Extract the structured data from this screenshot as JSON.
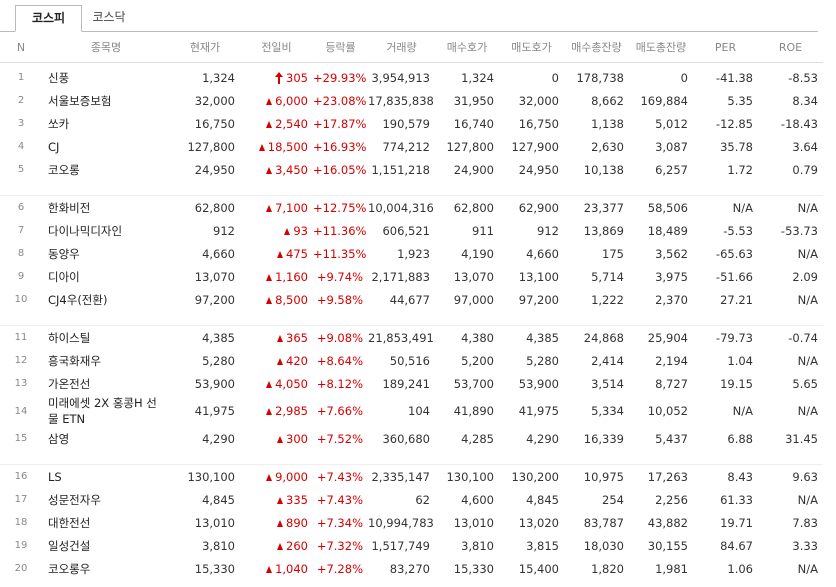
{
  "tabs": [
    "코스피",
    "코스닥"
  ],
  "headers": [
    "N",
    "종목명",
    "현재가",
    "전일비",
    "등락률",
    "거래량",
    "매수호가",
    "매도호가",
    "매수총잔량",
    "매도총잔량",
    "PER",
    "ROE"
  ],
  "rows": [
    [
      "1",
      "신풍",
      "1,324",
      "305",
      "+29.93%",
      "3,954,913",
      "1,324",
      "0",
      "178,738",
      "0",
      "-41.38",
      "-8.53"
    ],
    [
      "2",
      "서울보증보험",
      "32,000",
      "6,000",
      "+23.08%",
      "17,835,838",
      "31,950",
      "32,000",
      "8,662",
      "169,884",
      "5.35",
      "8.34"
    ],
    [
      "3",
      "쏘카",
      "16,750",
      "2,540",
      "+17.87%",
      "190,579",
      "16,740",
      "16,750",
      "1,138",
      "5,012",
      "-12.85",
      "-18.43"
    ],
    [
      "4",
      "CJ",
      "127,800",
      "18,500",
      "+16.93%",
      "774,212",
      "127,800",
      "127,900",
      "2,630",
      "3,087",
      "35.78",
      "3.64"
    ],
    [
      "5",
      "코오롱",
      "24,950",
      "3,450",
      "+16.05%",
      "1,151,218",
      "24,900",
      "24,950",
      "10,138",
      "6,257",
      "1.72",
      "0.79"
    ],
    [
      "6",
      "한화비전",
      "62,800",
      "7,100",
      "+12.75%",
      "10,004,316",
      "62,800",
      "62,900",
      "23,377",
      "58,506",
      "N/A",
      "N/A"
    ],
    [
      "7",
      "다이나믹디자인",
      "912",
      "93",
      "+11.36%",
      "606,521",
      "911",
      "912",
      "13,869",
      "18,489",
      "-5.53",
      "-53.73"
    ],
    [
      "8",
      "동양우",
      "4,660",
      "475",
      "+11.35%",
      "1,923",
      "4,190",
      "4,660",
      "175",
      "3,562",
      "-65.63",
      "N/A"
    ],
    [
      "9",
      "디아이",
      "13,070",
      "1,160",
      "+9.74%",
      "2,171,883",
      "13,070",
      "13,100",
      "5,714",
      "3,975",
      "-51.66",
      "2.09"
    ],
    [
      "10",
      "CJ4우(전환)",
      "97,200",
      "8,500",
      "+9.58%",
      "44,677",
      "97,000",
      "97,200",
      "1,222",
      "2,370",
      "27.21",
      "N/A"
    ],
    [
      "11",
      "하이스틸",
      "4,385",
      "365",
      "+9.08%",
      "21,853,491",
      "4,380",
      "4,385",
      "24,868",
      "25,904",
      "-79.73",
      "-0.74"
    ],
    [
      "12",
      "흥국화재우",
      "5,280",
      "420",
      "+8.64%",
      "50,516",
      "5,200",
      "5,280",
      "2,414",
      "2,194",
      "1.04",
      "N/A"
    ],
    [
      "13",
      "가온전선",
      "53,900",
      "4,050",
      "+8.12%",
      "189,241",
      "53,700",
      "53,900",
      "3,514",
      "8,727",
      "19.15",
      "5.65"
    ],
    [
      "14",
      "미래에셋 2X 홍콩H 선물 ETN",
      "41,975",
      "2,985",
      "+7.66%",
      "104",
      "41,890",
      "41,975",
      "5,334",
      "10,052",
      "N/A",
      "N/A"
    ],
    [
      "15",
      "삼영",
      "4,290",
      "300",
      "+7.52%",
      "360,680",
      "4,285",
      "4,290",
      "16,339",
      "5,437",
      "6.88",
      "31.45"
    ],
    [
      "16",
      "LS",
      "130,100",
      "9,000",
      "+7.43%",
      "2,335,147",
      "130,100",
      "130,200",
      "10,975",
      "17,263",
      "8.43",
      "9.63"
    ],
    [
      "17",
      "성문전자우",
      "4,845",
      "335",
      "+7.43%",
      "62",
      "4,600",
      "4,845",
      "254",
      "2,256",
      "61.33",
      "N/A"
    ],
    [
      "18",
      "대한전선",
      "13,010",
      "890",
      "+7.34%",
      "10,994,783",
      "13,010",
      "13,020",
      "83,787",
      "43,882",
      "19.71",
      "7.83"
    ],
    [
      "19",
      "일성건설",
      "3,810",
      "260",
      "+7.32%",
      "1,517,749",
      "3,810",
      "3,815",
      "18,030",
      "30,155",
      "84.67",
      "3.33"
    ],
    [
      "20",
      "코오롱우",
      "15,330",
      "1,040",
      "+7.28%",
      "83,270",
      "15,330",
      "15,400",
      "1,820",
      "1,981",
      "1.06",
      "N/A"
    ]
  ]
}
